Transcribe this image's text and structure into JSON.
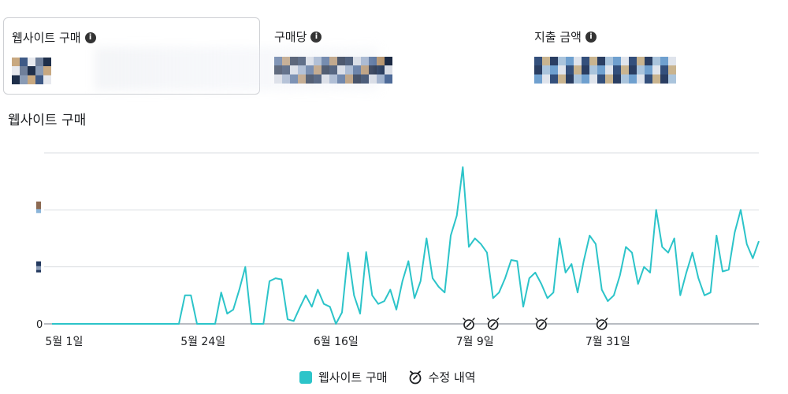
{
  "metrics": [
    {
      "label": "웹사이트 구매",
      "selected": true
    },
    {
      "label": "구매당",
      "selected": false
    },
    {
      "label": "지출 금액",
      "selected": false
    }
  ],
  "chart_data": {
    "type": "line",
    "title": "웹사이트 구매",
    "x_start": "5월 1일",
    "x_end": "7월 31일",
    "x_ticks": [
      {
        "label": "5월 1일",
        "index": 2
      },
      {
        "label": "5월 24일",
        "index": 25
      },
      {
        "label": "6월 16일",
        "index": 47
      },
      {
        "label": "7월 9일",
        "index": 70
      },
      {
        "label": "7월 31일",
        "index": 92
      }
    ],
    "y_tick_labels": [
      "0"
    ],
    "ylim": [
      0,
      3
    ],
    "grid": true,
    "legend_position": "bottom-center",
    "series": [
      {
        "name": "웹사이트 구매",
        "color": "#2cc4c9",
        "values": [
          0,
          0,
          0,
          0,
          0,
          0,
          0,
          0,
          0,
          0,
          0,
          0,
          0,
          0,
          0,
          0,
          0,
          0,
          0,
          0,
          0,
          0,
          0.5,
          0.5,
          0,
          0,
          0,
          0,
          0.55,
          0.18,
          0.25,
          0.6,
          1.0,
          0,
          0,
          0,
          0.75,
          0.8,
          0.78,
          0.08,
          0.05,
          0.28,
          0.5,
          0.3,
          0.6,
          0.35,
          0.3,
          0,
          0.2,
          1.25,
          0.5,
          0.18,
          1.26,
          0.5,
          0.35,
          0.4,
          0.6,
          0.25,
          0.75,
          1.1,
          0.45,
          0.75,
          1.5,
          0.8,
          0.65,
          0.55,
          1.55,
          1.9,
          2.75,
          1.35,
          1.5,
          1.4,
          1.25,
          0.45,
          0.55,
          0.8,
          1.12,
          1.1,
          0.3,
          0.8,
          0.9,
          0.7,
          0.45,
          0.55,
          1.5,
          0.9,
          1.05,
          0.55,
          1.1,
          1.55,
          1.4,
          0.6,
          0.4,
          0.5,
          0.85,
          1.35,
          1.25,
          0.7,
          1.0,
          0.9,
          2.0,
          1.35,
          1.25,
          1.5,
          0.5,
          0.9,
          1.25,
          0.8,
          0.5,
          0.55,
          1.55,
          0.92,
          0.95,
          1.6,
          2.0,
          1.4,
          1.15,
          1.45
        ]
      }
    ],
    "revision_markers_at": [
      69,
      73,
      81,
      91
    ]
  },
  "legend": {
    "series_label": "웹사이트 구매",
    "edit_label": "수정 내역"
  },
  "icons": {
    "info": "info-icon",
    "edit_history": "edit-history-icon"
  }
}
